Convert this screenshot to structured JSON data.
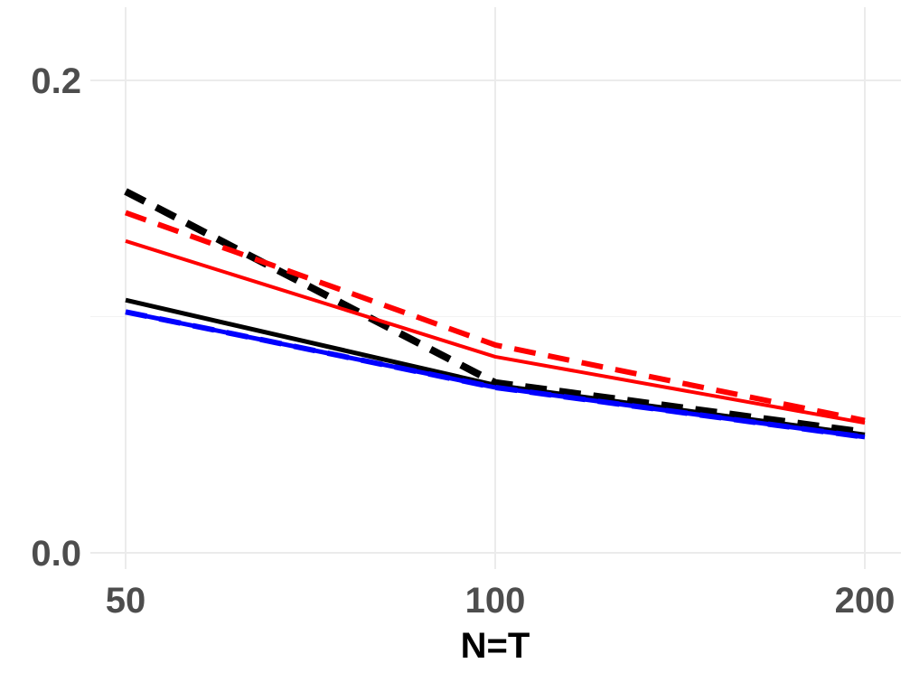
{
  "chart_data": {
    "type": "line",
    "title": "",
    "xlabel": "N=T",
    "ylabel": "",
    "x": [
      50,
      100,
      200
    ],
    "x_ticks": [
      50,
      100,
      200
    ],
    "x_tick_labels": [
      "50",
      "100",
      "200"
    ],
    "y_ticks": [
      0.0,
      0.2
    ],
    "y_tick_labels": [
      "0.0",
      "0.2"
    ],
    "xlim": [
      50,
      200
    ],
    "ylim": [
      0.0,
      0.2
    ],
    "grid": true,
    "legend": "none",
    "series": [
      {
        "color": "#000000",
        "dash": "solid",
        "values": [
          0.107,
          0.071,
          0.05
        ]
      },
      {
        "color": "#000000",
        "dash": "dashed",
        "values": [
          0.153,
          0.072,
          0.051
        ]
      },
      {
        "color": "#ff0000",
        "dash": "solid",
        "values": [
          0.132,
          0.083,
          0.055
        ]
      },
      {
        "color": "#ff0000",
        "dash": "dashed",
        "values": [
          0.144,
          0.088,
          0.056
        ]
      },
      {
        "color": "#0000ff",
        "dash": "solid",
        "values": [
          0.102,
          0.07,
          0.049
        ]
      },
      {
        "color": "#0000ff",
        "dash": "dashed",
        "values": [
          0.102,
          0.07,
          0.049
        ]
      }
    ]
  }
}
